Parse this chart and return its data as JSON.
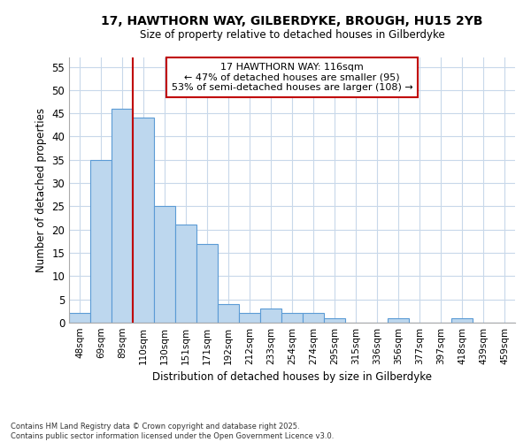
{
  "title_line1": "17, HAWTHORN WAY, GILBERDYKE, BROUGH, HU15 2YB",
  "title_line2": "Size of property relative to detached houses in Gilberdyke",
  "xlabel": "Distribution of detached houses by size in Gilberdyke",
  "ylabel": "Number of detached properties",
  "categories": [
    "48sqm",
    "69sqm",
    "89sqm",
    "110sqm",
    "130sqm",
    "151sqm",
    "171sqm",
    "192sqm",
    "212sqm",
    "233sqm",
    "254sqm",
    "274sqm",
    "295sqm",
    "315sqm",
    "336sqm",
    "356sqm",
    "377sqm",
    "397sqm",
    "418sqm",
    "439sqm",
    "459sqm"
  ],
  "values": [
    2,
    35,
    46,
    44,
    25,
    21,
    17,
    4,
    2,
    3,
    2,
    2,
    1,
    0,
    0,
    1,
    0,
    0,
    1,
    0,
    0
  ],
  "bar_color": "#bdd7ee",
  "bar_edge_color": "#5b9bd5",
  "ylim": [
    0,
    57
  ],
  "yticks": [
    0,
    5,
    10,
    15,
    20,
    25,
    30,
    35,
    40,
    45,
    50,
    55
  ],
  "vline_color": "#c00000",
  "annotation_text": "17 HAWTHORN WAY: 116sqm\n← 47% of detached houses are smaller (95)\n53% of semi-detached houses are larger (108) →",
  "annotation_box_color": "#c00000",
  "footer_line1": "Contains HM Land Registry data © Crown copyright and database right 2025.",
  "footer_line2": "Contains public sector information licensed under the Open Government Licence v3.0.",
  "background_color": "#ffffff",
  "grid_color": "#c8d8ea"
}
